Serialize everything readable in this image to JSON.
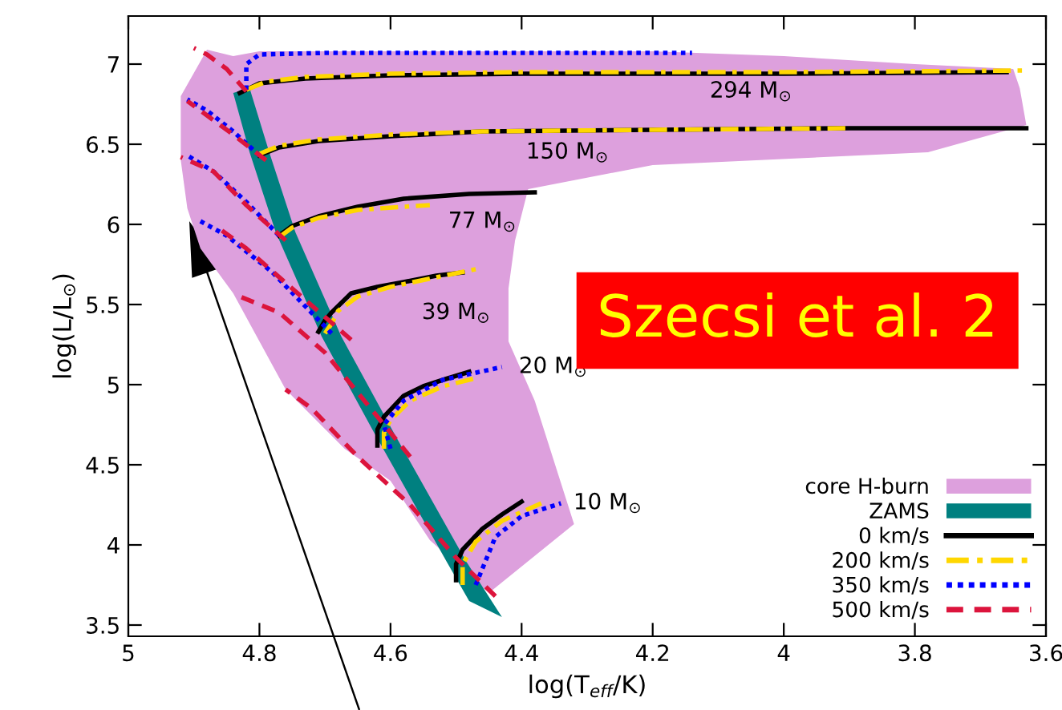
{
  "chart_data": {
    "type": "line",
    "xlabel": "log(T$_{eff}$/K)",
    "ylabel": "log(L/L$_{⊙}$)",
    "xlim": [
      5,
      3.6
    ],
    "ylim": [
      3.43,
      7.3
    ],
    "xticks": [
      5,
      4.8,
      4.6,
      4.4,
      4.2,
      4,
      3.8,
      3.6
    ],
    "yticks": [
      3.5,
      4,
      4.5,
      5,
      5.5,
      6,
      6.5,
      7
    ],
    "grid": false,
    "legend": "bottom right",
    "series": [
      {
        "name": "core H-burn",
        "type": "area",
        "color": "#dda0dd",
        "x": [
          4.92,
          4.88,
          4.84,
          4.8,
          4.6,
          4.2,
          4.0,
          3.8,
          3.65,
          3.64,
          3.63,
          3.78,
          4.2,
          4.39,
          4.41,
          4.42,
          4.42,
          4.38,
          4.32,
          4.45,
          4.54,
          4.6,
          4.67,
          4.76,
          4.84,
          4.89,
          4.91,
          4.92
        ],
        "values": [
          6.8,
          7.09,
          7.05,
          7.08,
          7.08,
          7.08,
          7.05,
          7.0,
          6.97,
          6.85,
          6.62,
          6.45,
          6.37,
          6.22,
          5.9,
          5.6,
          5.27,
          4.9,
          4.13,
          3.7,
          4.03,
          4.4,
          4.6,
          4.97,
          5.57,
          5.85,
          6.1,
          6.4
        ]
      },
      {
        "name": "ZAMS",
        "type": "area",
        "color": "#008080",
        "x": [
          4.815,
          4.785,
          4.745,
          4.675,
          4.595,
          4.485,
          4.43,
          4.48,
          4.515,
          4.625,
          4.705,
          4.775,
          4.815,
          4.84
        ],
        "values": [
          6.85,
          6.45,
          5.95,
          5.3,
          4.7,
          3.9,
          3.55,
          3.65,
          3.9,
          4.7,
          5.3,
          5.95,
          6.45,
          6.82
        ]
      },
      {
        "name": "0 km/s",
        "color": "#000000",
        "line_style": "solid",
        "x": [
          4.83,
          4.8,
          4.73,
          4.6,
          4.4,
          4.0,
          3.66,
          null,
          4.8,
          4.77,
          4.71,
          4.6,
          4.46,
          4.2,
          3.9,
          3.63,
          null,
          4.77,
          4.75,
          4.71,
          4.65,
          4.58,
          4.48,
          4.38,
          null,
          4.71,
          4.7,
          4.69,
          4.66,
          4.62,
          4.58,
          4.53,
          4.49,
          null,
          4.62,
          4.62,
          4.61,
          4.58,
          4.55,
          4.52,
          4.48,
          null,
          4.5,
          4.5,
          4.49,
          4.46,
          4.43,
          4.4
        ],
        "values": [
          6.82,
          6.88,
          6.91,
          6.93,
          6.94,
          6.94,
          6.95,
          null,
          6.43,
          6.48,
          6.52,
          6.55,
          6.58,
          6.59,
          6.6,
          6.6,
          null,
          5.93,
          5.99,
          6.05,
          6.11,
          6.16,
          6.19,
          6.2,
          null,
          5.33,
          5.4,
          5.45,
          5.57,
          5.61,
          5.64,
          5.68,
          5.7,
          null,
          4.62,
          4.72,
          4.8,
          4.93,
          4.99,
          5.03,
          5.08,
          null,
          3.78,
          3.88,
          3.97,
          4.1,
          4.19,
          4.27
        ]
      },
      {
        "name": "200 km/s",
        "color": "#ffd700",
        "line_style": "dashdot",
        "x": [
          4.82,
          4.79,
          4.73,
          4.6,
          4.4,
          4.0,
          3.63,
          null,
          4.8,
          4.77,
          4.71,
          4.6,
          4.46,
          4.2,
          3.9,
          null,
          4.77,
          4.75,
          4.71,
          4.65,
          4.58,
          4.54,
          null,
          4.7,
          4.69,
          4.68,
          4.65,
          4.6,
          4.53,
          4.47,
          null,
          4.61,
          4.61,
          4.6,
          4.57,
          4.52,
          4.47,
          null,
          4.49,
          4.49,
          4.47,
          4.43,
          4.37
        ],
        "values": [
          6.84,
          6.89,
          6.92,
          6.94,
          6.95,
          6.95,
          6.96,
          null,
          6.44,
          6.49,
          6.53,
          6.56,
          6.58,
          6.59,
          6.6,
          null,
          5.92,
          5.98,
          6.04,
          6.09,
          6.11,
          6.12,
          null,
          5.32,
          5.38,
          5.46,
          5.55,
          5.61,
          5.67,
          5.72,
          null,
          4.6,
          4.7,
          4.78,
          4.9,
          4.99,
          5.04,
          null,
          3.75,
          3.88,
          4.02,
          4.15,
          4.26
        ]
      },
      {
        "name": "350 km/s",
        "color": "#0000ff",
        "line_style": "dotted",
        "x": [
          4.82,
          4.82,
          4.8,
          4.7,
          4.14,
          null,
          4.8,
          4.84,
          4.88,
          4.91,
          null,
          4.77,
          4.82,
          4.87,
          4.91,
          null,
          4.69,
          4.78,
          4.85,
          4.89,
          null,
          4.6,
          4.61,
          4.58,
          4.52,
          4.43,
          null,
          4.47,
          4.44,
          4.4,
          4.34
        ],
        "values": [
          6.84,
          7.0,
          7.06,
          7.07,
          7.07,
          null,
          6.43,
          6.58,
          6.71,
          6.78,
          null,
          5.93,
          6.14,
          6.33,
          6.43,
          null,
          5.32,
          5.7,
          5.93,
          6.02,
          null,
          4.6,
          4.75,
          4.9,
          5.03,
          5.11,
          null,
          3.75,
          4.05,
          4.18,
          4.26
        ]
      },
      {
        "name": "500 km/s",
        "color": "#dc143c",
        "line_style": "dashed",
        "x": [
          4.82,
          4.85,
          4.88,
          4.9,
          null,
          4.79,
          4.84,
          4.91,
          null,
          4.76,
          4.82,
          4.87,
          4.92,
          null,
          4.66,
          4.75,
          4.82,
          4.86,
          null,
          4.57,
          4.62,
          4.7,
          4.77,
          4.83,
          null,
          4.44,
          4.5,
          4.57,
          4.65,
          4.72,
          4.76
        ],
        "values": [
          6.83,
          6.97,
          7.06,
          7.1,
          null,
          6.4,
          6.56,
          6.77,
          null,
          5.9,
          6.12,
          6.33,
          6.42,
          null,
          5.28,
          5.6,
          5.85,
          5.97,
          null,
          4.55,
          4.8,
          5.2,
          5.45,
          5.55,
          null,
          3.68,
          3.92,
          4.25,
          4.55,
          4.85,
          4.97
        ]
      }
    ],
    "annotations": [
      {
        "text": "294 M$_{⊙}$",
        "x": 4.05,
        "y": 6.94
      },
      {
        "text": "150 M$_{⊙}$",
        "x": 4.33,
        "y": 6.58
      },
      {
        "text": "77 M$_{⊙}$",
        "x": 4.46,
        "y": 6.19
      },
      {
        "text": "39 M$_{⊙}$",
        "x": 4.5,
        "y": 5.69
      },
      {
        "text": "20 M$_{⊙}$",
        "x": 4.43,
        "y": 5.11
      },
      {
        "text": "10 M$_{⊙}$",
        "x": 4.34,
        "y": 4.26
      },
      "Szecsi et al. 2"
    ]
  }
}
